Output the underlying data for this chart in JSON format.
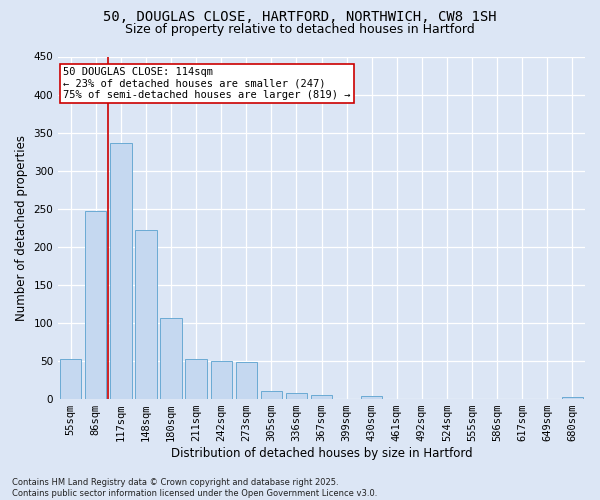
{
  "title_line1": "50, DOUGLAS CLOSE, HARTFORD, NORTHWICH, CW8 1SH",
  "title_line2": "Size of property relative to detached houses in Hartford",
  "xlabel": "Distribution of detached houses by size in Hartford",
  "ylabel": "Number of detached properties",
  "categories": [
    "55sqm",
    "86sqm",
    "117sqm",
    "148sqm",
    "180sqm",
    "211sqm",
    "242sqm",
    "273sqm",
    "305sqm",
    "336sqm",
    "367sqm",
    "399sqm",
    "430sqm",
    "461sqm",
    "492sqm",
    "524sqm",
    "555sqm",
    "586sqm",
    "617sqm",
    "649sqm",
    "680sqm"
  ],
  "values": [
    53,
    247,
    336,
    222,
    107,
    53,
    50,
    49,
    10,
    8,
    6,
    0,
    4,
    0,
    0,
    0,
    0,
    0,
    0,
    0,
    3
  ],
  "bar_color": "#c5d8f0",
  "bar_edge_color": "#6aaad4",
  "highlight_bar_index": 2,
  "highlight_color": "#cc0000",
  "annotation_text": "50 DOUGLAS CLOSE: 114sqm\n← 23% of detached houses are smaller (247)\n75% of semi-detached houses are larger (819) →",
  "annotation_box_color": "#ffffff",
  "annotation_box_edge": "#cc0000",
  "ylim": [
    0,
    450
  ],
  "yticks": [
    0,
    50,
    100,
    150,
    200,
    250,
    300,
    350,
    400,
    450
  ],
  "bg_color": "#dce6f5",
  "plot_bg_color": "#dce6f5",
  "grid_color": "#ffffff",
  "footnote": "Contains HM Land Registry data © Crown copyright and database right 2025.\nContains public sector information licensed under the Open Government Licence v3.0.",
  "title_fontsize": 10,
  "subtitle_fontsize": 9,
  "axis_label_fontsize": 8.5,
  "tick_fontsize": 7.5,
  "annotation_fontsize": 7.5,
  "footnote_fontsize": 6
}
